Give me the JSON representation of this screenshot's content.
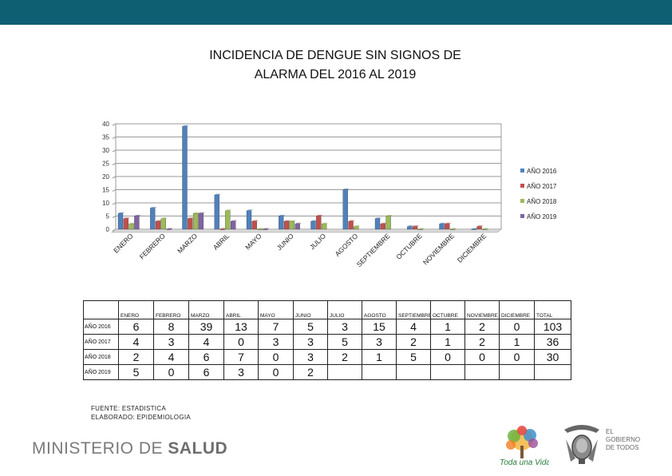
{
  "title": {
    "line1": "INCIDENCIA DE DENGUE SIN SIGNOS DE",
    "line2": "ALARMA DEL 2016 AL 2019"
  },
  "chart_data": {
    "type": "bar",
    "title": "INCIDENCIA DE DENGUE SIN SIGNOS DE ALARMA DEL 2016 AL 2019",
    "categories": [
      "ENERO",
      "FEBRERO",
      "MARZO",
      "ABRIL",
      "MAYO",
      "JUNIO",
      "JULIO",
      "AGOSTO",
      "SEPTIEMBRE",
      "OCTUBRE",
      "NOVIEMBRE",
      "DICIEMBRE"
    ],
    "series": [
      {
        "name": "AÑO 2016",
        "color": "#4f81bd",
        "values": [
          6,
          8,
          39,
          13,
          7,
          5,
          3,
          15,
          4,
          1,
          2,
          0
        ]
      },
      {
        "name": "AÑO 2017",
        "color": "#c0504d",
        "values": [
          4,
          3,
          4,
          0,
          3,
          3,
          5,
          3,
          2,
          1,
          2,
          1
        ]
      },
      {
        "name": "AÑO 2018",
        "color": "#9bbb59",
        "values": [
          2,
          4,
          6,
          7,
          0,
          3,
          2,
          1,
          5,
          0,
          0,
          0
        ]
      },
      {
        "name": "AÑO 2019",
        "color": "#8064a2",
        "values": [
          5,
          0,
          6,
          3,
          0,
          2,
          null,
          null,
          null,
          null,
          null,
          null
        ]
      }
    ],
    "yticks": [
      0,
      5,
      10,
      15,
      20,
      25,
      30,
      35,
      40
    ],
    "ylim": [
      0,
      40
    ],
    "grid": true,
    "legend": "right"
  },
  "table": {
    "headers": [
      "ENERO",
      "FEBRERO",
      "MARZO",
      "ABRIL",
      "MAYO",
      "JUNIO",
      "JULIO",
      "AGOSTO",
      "SEPTIEMBRE",
      "OCTUBRE",
      "NOVIEMBRE",
      "DICIEMBRE",
      "TOTAL"
    ],
    "rows": [
      {
        "label": "AÑO 2016",
        "cells": [
          "6",
          "8",
          "39",
          "13",
          "7",
          "5",
          "3",
          "15",
          "4",
          "1",
          "2",
          "0",
          "103"
        ]
      },
      {
        "label": "AÑO 2017",
        "cells": [
          "4",
          "3",
          "4",
          "0",
          "3",
          "3",
          "5",
          "3",
          "2",
          "1",
          "2",
          "1",
          "36"
        ]
      },
      {
        "label": "AÑO 2018",
        "cells": [
          "2",
          "4",
          "6",
          "7",
          "0",
          "3",
          "2",
          "1",
          "5",
          "0",
          "0",
          "0",
          "30"
        ]
      },
      {
        "label": "AÑO 2019",
        "cells": [
          "5",
          "0",
          "6",
          "3",
          "0",
          "2",
          "",
          "",
          "",
          "",
          "",
          "",
          ""
        ]
      }
    ]
  },
  "source": {
    "line1": "FUENTE: ESTADISTICA",
    "line2": "ELABORADO: EPIDEMIOLOGIA"
  },
  "footer": {
    "ministry_light": "MINISTERIO DE ",
    "ministry_bold": "SALUD",
    "vida_logo_text": "Toda una Vida",
    "gov_line1": "EL",
    "gov_line2": "GOBIERNO",
    "gov_line3": "DE TODOS"
  }
}
